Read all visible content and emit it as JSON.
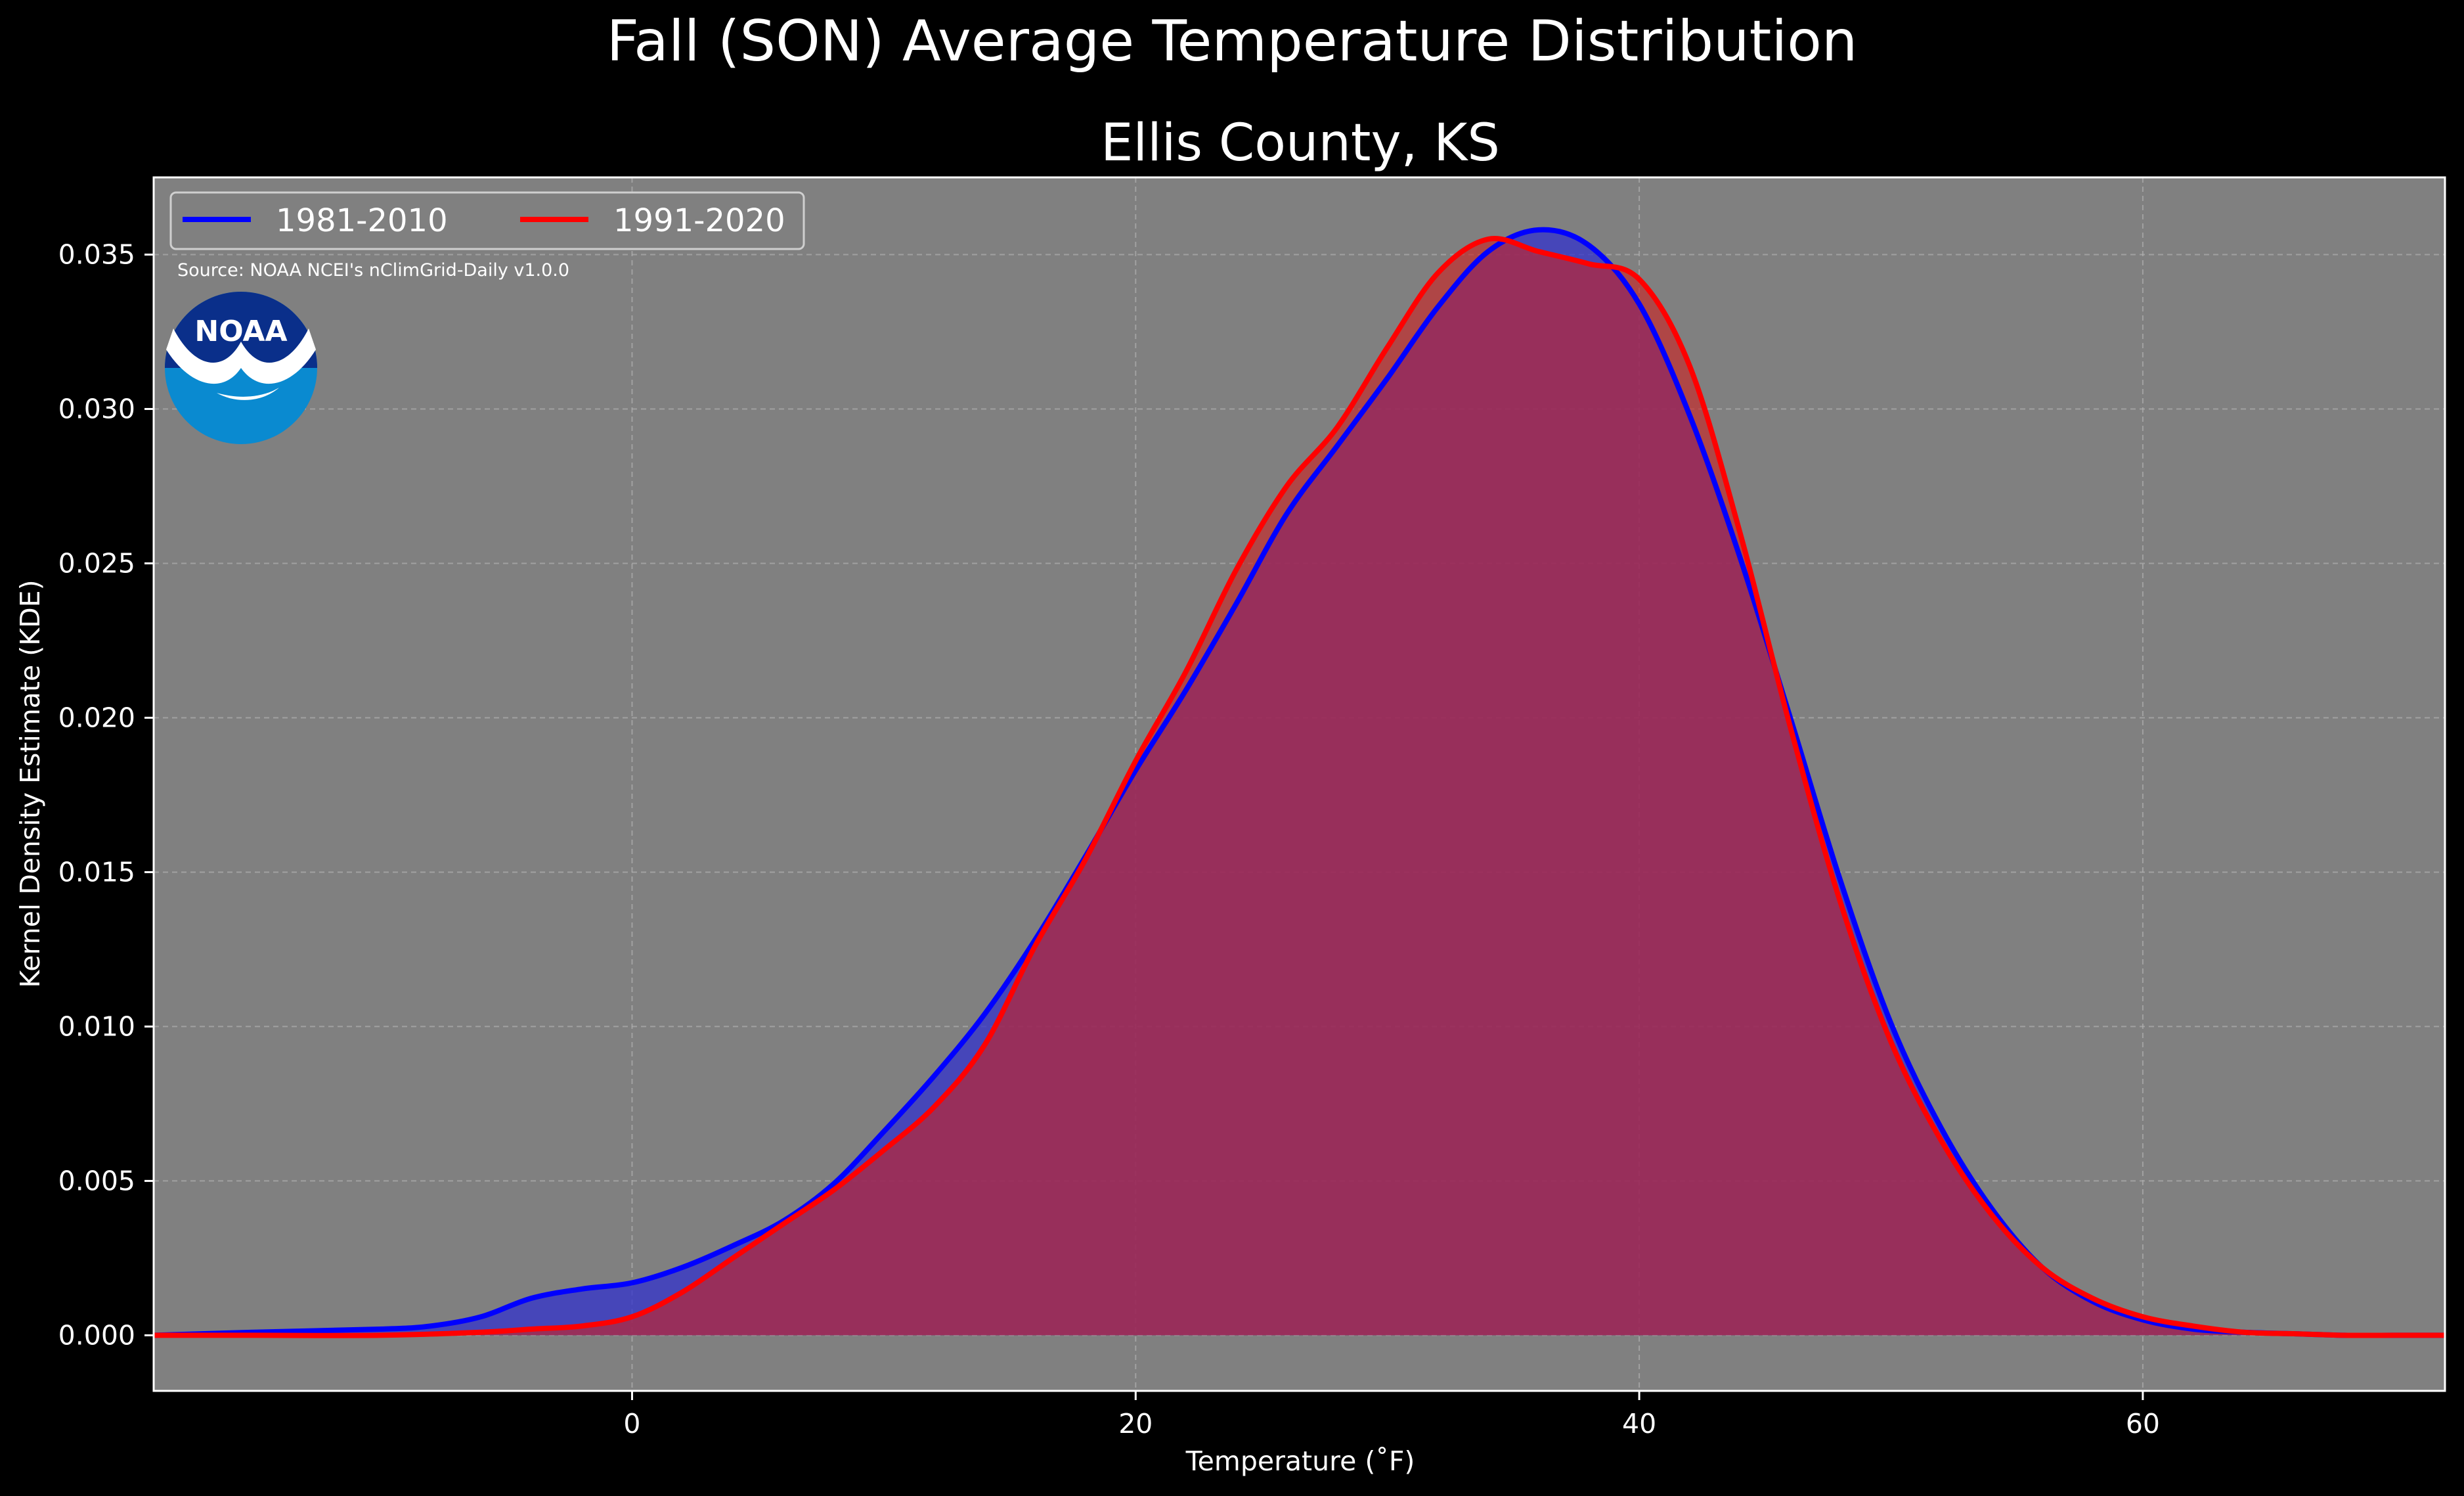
{
  "chart_data": {
    "type": "area",
    "title": "Fall (SON) Average Temperature Distribution",
    "subtitle": "Ellis County, KS",
    "xlabel": "Temperature (˚F)",
    "ylabel": "Kernel Density Estimate (KDE)",
    "xlim": [
      -19,
      72
    ],
    "ylim": [
      -0.0018,
      0.0375
    ],
    "xticks": [
      0,
      20,
      40,
      60
    ],
    "yticks": [
      0.0,
      0.005,
      0.01,
      0.015,
      0.02,
      0.025,
      0.03,
      0.035
    ],
    "ytick_labels": [
      "0.000",
      "0.005",
      "0.010",
      "0.015",
      "0.020",
      "0.025",
      "0.030",
      "0.035"
    ],
    "grid": true,
    "legend_placement": "top-left",
    "source_note": "Source: NOAA NCEI's nClimGrid-Daily v1.0.0",
    "logo_text": "NOAA",
    "colors": {
      "figure_bg": "#000000",
      "axes_bg": "#808080",
      "grid": "#b0b0b0",
      "overlap_fill": "#9b1f5e"
    },
    "series": [
      {
        "name": "1981-2010",
        "color": "#0000ff",
        "fill": "#3333cc",
        "x": [
          -19,
          -15,
          -10,
          -8,
          -6,
          -4,
          -2,
          0,
          2,
          4,
          6,
          8,
          10,
          12,
          14,
          16,
          18,
          20,
          22,
          24,
          26,
          28,
          30,
          32,
          34,
          36,
          38,
          40,
          42,
          44,
          46,
          48,
          50,
          52,
          54,
          56,
          58,
          60,
          62,
          64,
          66,
          68,
          70,
          72
        ],
        "values": [
          0.0,
          0.0001,
          0.0002,
          0.0003,
          0.0006,
          0.0012,
          0.0015,
          0.0017,
          0.0022,
          0.0029,
          0.0037,
          0.0049,
          0.0066,
          0.0084,
          0.0104,
          0.0128,
          0.0155,
          0.0183,
          0.0209,
          0.0237,
          0.0266,
          0.0288,
          0.031,
          0.0333,
          0.0351,
          0.0358,
          0.0353,
          0.0334,
          0.0298,
          0.0252,
          0.02,
          0.0147,
          0.0101,
          0.0067,
          0.0041,
          0.0022,
          0.0011,
          0.0005,
          0.0002,
          0.0001,
          5e-05,
          0.0,
          0.0,
          0.0
        ]
      },
      {
        "name": "1991-2020",
        "color": "#ff0000",
        "fill": "#cc2222",
        "x": [
          -19,
          -15,
          -10,
          -6,
          -4,
          -2,
          0,
          2,
          4,
          6,
          8,
          10,
          12,
          14,
          16,
          18,
          20,
          22,
          24,
          26,
          28,
          30,
          32,
          34,
          36,
          38,
          40,
          42,
          44,
          46,
          48,
          50,
          52,
          54,
          56,
          58,
          60,
          62,
          64,
          66,
          68,
          70,
          72
        ],
        "values": [
          0.0,
          0.0,
          0.0,
          0.0001,
          0.0002,
          0.0003,
          0.0006,
          0.0014,
          0.0025,
          0.0036,
          0.0047,
          0.006,
          0.0074,
          0.0094,
          0.0126,
          0.0154,
          0.0186,
          0.0215,
          0.0248,
          0.0275,
          0.0294,
          0.032,
          0.0344,
          0.0355,
          0.0351,
          0.0347,
          0.0342,
          0.0314,
          0.026,
          0.0197,
          0.014,
          0.0095,
          0.0063,
          0.0039,
          0.0022,
          0.0012,
          0.0006,
          0.0003,
          0.0001,
          5e-05,
          0.0,
          0.0,
          0.0
        ]
      }
    ]
  }
}
